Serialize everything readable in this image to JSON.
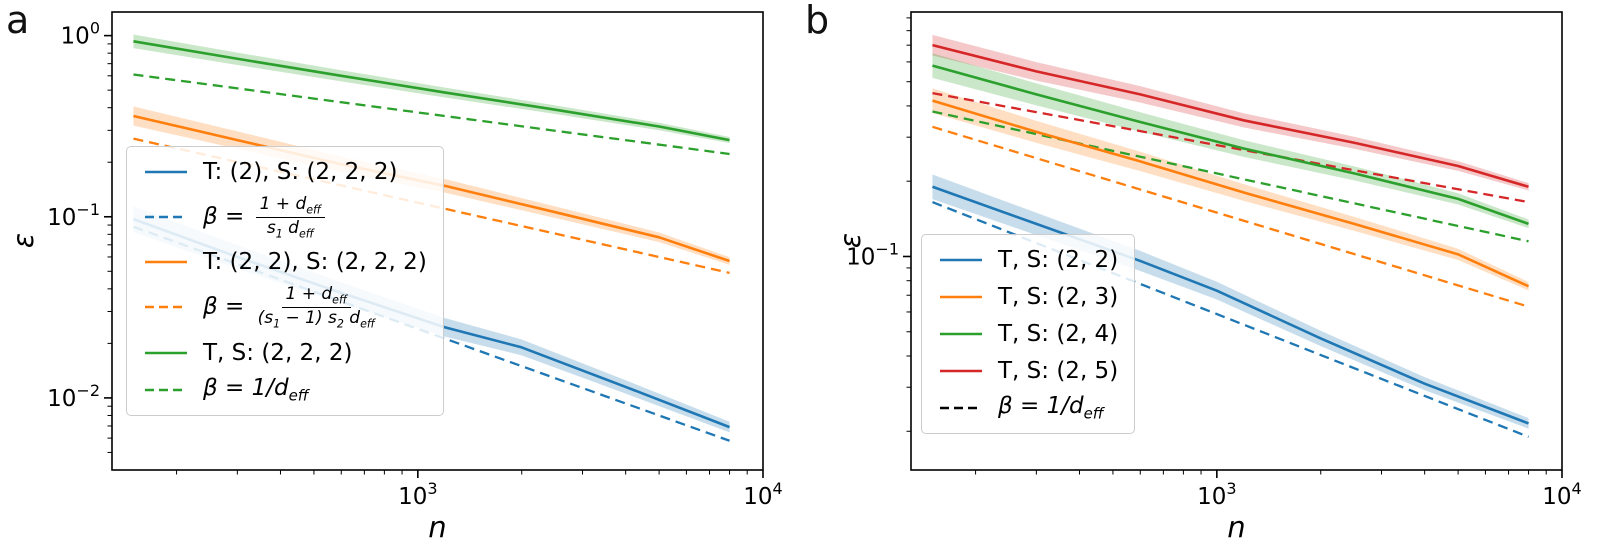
{
  "chart_data": [
    {
      "type": "line",
      "panel_label": "a",
      "xlabel": "n",
      "ylabel": "ε",
      "xscale": "log",
      "yscale": "log",
      "xlim": [
        130,
        10000
      ],
      "ylim": [
        0.004,
        1.35
      ],
      "grid": false,
      "x_ticks": [
        {
          "value": 1000,
          "exp": "3"
        },
        {
          "value": 10000,
          "exp": "4"
        }
      ],
      "y_ticks": [
        {
          "value": 1,
          "exp": "0"
        },
        {
          "value": 0.1,
          "exp": "−1"
        },
        {
          "value": 0.01,
          "exp": "−2"
        }
      ],
      "series": [
        {
          "name": "T, S: (2, 2, 2) band",
          "color": "#2ca02c",
          "style": "band",
          "x": [
            150,
            300,
            600,
            1200,
            2500,
            5000,
            8000
          ],
          "y": [
            0.93,
            0.745,
            0.6,
            0.485,
            0.39,
            0.315,
            0.265
          ],
          "band_factor": [
            1.09,
            1.04
          ]
        },
        {
          "name": "T: (2, 2), S: (2, 2, 2) band",
          "color": "#ff7f0e",
          "style": "band",
          "x": [
            150,
            300,
            600,
            1200,
            2500,
            5000,
            8000
          ],
          "y": [
            0.36,
            0.265,
            0.195,
            0.148,
            0.106,
            0.077,
            0.057
          ],
          "band_factor": [
            1.13,
            1.05
          ]
        },
        {
          "name": "T: (2), S: (2, 2, 2) band",
          "color": "#1f77b4",
          "style": "band",
          "x": [
            150,
            300,
            600,
            1200,
            2000,
            4000,
            8000
          ],
          "y": [
            0.097,
            0.06,
            0.038,
            0.0245,
            0.019,
            0.0115,
            0.0069
          ],
          "band_factor": [
            1.18,
            1.07
          ]
        },
        {
          "name": "β = 1/d_eff (green)",
          "color": "#2ca02c",
          "style": "dashed",
          "x": [
            150,
            8000
          ],
          "y": [
            0.61,
            0.222
          ]
        },
        {
          "name": "T, S: (2, 2, 2)",
          "color": "#2ca02c",
          "style": "solid",
          "x": [
            150,
            300,
            600,
            1200,
            2500,
            5000,
            8000
          ],
          "y": [
            0.93,
            0.745,
            0.6,
            0.485,
            0.39,
            0.315,
            0.265
          ]
        },
        {
          "name": "β = (1+d_eff)/((s1−1) s2 d_eff)",
          "color": "#ff7f0e",
          "style": "dashed",
          "x": [
            150,
            8000
          ],
          "y": [
            0.27,
            0.049
          ]
        },
        {
          "name": "T: (2, 2), S: (2, 2, 2)",
          "color": "#ff7f0e",
          "style": "solid",
          "x": [
            150,
            300,
            600,
            1200,
            2500,
            5000,
            8000
          ],
          "y": [
            0.36,
            0.265,
            0.195,
            0.148,
            0.106,
            0.077,
            0.057
          ]
        },
        {
          "name": "β = (1+d_eff)/(s1 d_eff)",
          "color": "#1f77b4",
          "style": "dashed",
          "x": [
            150,
            8000
          ],
          "y": [
            0.088,
            0.0058
          ]
        },
        {
          "name": "T: (2), S: (2, 2, 2)",
          "color": "#1f77b4",
          "style": "solid",
          "x": [
            150,
            300,
            600,
            1200,
            2000,
            4000,
            8000
          ],
          "y": [
            0.097,
            0.06,
            0.038,
            0.0245,
            0.019,
            0.0115,
            0.0069
          ]
        }
      ],
      "legend": {
        "position": "center-left",
        "entries": [
          {
            "kind": "text",
            "dash": false,
            "color": "#1f77b4",
            "label": "T: (2), S: (2, 2, 2)"
          },
          {
            "kind": "frac",
            "dash": true,
            "color": "#1f77b4",
            "prefix": "β = ",
            "num": "1 + d_[eff]",
            "den": "s_[1] d_[eff]"
          },
          {
            "kind": "text",
            "dash": false,
            "color": "#ff7f0e",
            "label": "T: (2, 2), S: (2, 2, 2)"
          },
          {
            "kind": "frac",
            "dash": true,
            "color": "#ff7f0e",
            "prefix": "β = ",
            "num": "1 + d_[eff]",
            "den": "(s_[1] − 1) s_[2] d_[eff]"
          },
          {
            "kind": "text",
            "dash": false,
            "color": "#2ca02c",
            "label": "T, S: (2, 2, 2)"
          },
          {
            "kind": "math",
            "dash": true,
            "color": "#2ca02c",
            "label": "β = 1/d_[eff]"
          }
        ]
      }
    },
    {
      "type": "line",
      "panel_label": "b",
      "xlabel": "n",
      "ylabel": "ε",
      "xscale": "log",
      "yscale": "log",
      "xlim": [
        130,
        10000
      ],
      "ylim": [
        0.014,
        0.95
      ],
      "grid": false,
      "x_ticks": [
        {
          "value": 1000,
          "exp": "3"
        },
        {
          "value": 10000,
          "exp": "4"
        }
      ],
      "y_ticks": [
        {
          "value": 0.1,
          "exp": "−1"
        }
      ],
      "series": [
        {
          "name": "T, S: (2, 5) band",
          "color": "#d62728",
          "style": "band",
          "x": [
            150,
            300,
            600,
            1200,
            2500,
            5000,
            8000
          ],
          "y": [
            0.7,
            0.55,
            0.445,
            0.35,
            0.285,
            0.23,
            0.19
          ],
          "band_factor": [
            1.1,
            1.035
          ]
        },
        {
          "name": "T, S: (2, 4) band",
          "color": "#2ca02c",
          "style": "band",
          "x": [
            150,
            300,
            600,
            1200,
            2500,
            5000,
            8000
          ],
          "y": [
            0.58,
            0.445,
            0.345,
            0.27,
            0.215,
            0.17,
            0.135
          ],
          "band_factor": [
            1.12,
            1.04
          ]
        },
        {
          "name": "T, S: (2, 3) band",
          "color": "#ff7f0e",
          "style": "band",
          "x": [
            150,
            300,
            600,
            1200,
            2500,
            5000,
            8000
          ],
          "y": [
            0.42,
            0.315,
            0.24,
            0.18,
            0.135,
            0.102,
            0.076
          ],
          "band_factor": [
            1.12,
            1.04
          ]
        },
        {
          "name": "T, S: (2, 2) band",
          "color": "#1f77b4",
          "style": "band",
          "x": [
            150,
            300,
            600,
            1000,
            2000,
            4000,
            8000
          ],
          "y": [
            0.19,
            0.135,
            0.096,
            0.073,
            0.047,
            0.031,
            0.0215
          ],
          "band_factor": [
            1.12,
            1.05
          ]
        },
        {
          "name": "β = 1/d_eff (red)",
          "color": "#d62728",
          "style": "dashed",
          "x": [
            150,
            8000
          ],
          "y": [
            0.45,
            0.165
          ]
        },
        {
          "name": "β = 1/d_eff (green)",
          "color": "#2ca02c",
          "style": "dashed",
          "x": [
            150,
            8000
          ],
          "y": [
            0.38,
            0.115
          ]
        },
        {
          "name": "β = 1/d_eff (orange)",
          "color": "#ff7f0e",
          "style": "dashed",
          "x": [
            150,
            8000
          ],
          "y": [
            0.33,
            0.063
          ]
        },
        {
          "name": "β = 1/d_eff (blue)",
          "color": "#1f77b4",
          "style": "dashed",
          "x": [
            150,
            8000
          ],
          "y": [
            0.165,
            0.019
          ]
        },
        {
          "name": "T, S: (2, 2)",
          "color": "#1f77b4",
          "style": "solid",
          "x": [
            150,
            300,
            600,
            1000,
            2000,
            4000,
            8000
          ],
          "y": [
            0.19,
            0.135,
            0.096,
            0.073,
            0.047,
            0.031,
            0.0215
          ]
        },
        {
          "name": "T, S: (2, 3)",
          "color": "#ff7f0e",
          "style": "solid",
          "x": [
            150,
            300,
            600,
            1200,
            2500,
            5000,
            8000
          ],
          "y": [
            0.42,
            0.315,
            0.24,
            0.18,
            0.135,
            0.102,
            0.076
          ]
        },
        {
          "name": "T, S: (2, 4)",
          "color": "#2ca02c",
          "style": "solid",
          "x": [
            150,
            300,
            600,
            1200,
            2500,
            5000,
            8000
          ],
          "y": [
            0.58,
            0.445,
            0.345,
            0.27,
            0.215,
            0.17,
            0.135
          ]
        },
        {
          "name": "T, S: (2, 5)",
          "color": "#d62728",
          "style": "solid",
          "x": [
            150,
            300,
            600,
            1200,
            2500,
            5000,
            8000
          ],
          "y": [
            0.7,
            0.55,
            0.445,
            0.35,
            0.285,
            0.23,
            0.19
          ]
        }
      ],
      "legend": {
        "position": "lower-left",
        "entries": [
          {
            "kind": "text",
            "dash": false,
            "color": "#1f77b4",
            "label": "T, S: (2, 2)"
          },
          {
            "kind": "text",
            "dash": false,
            "color": "#ff7f0e",
            "label": "T, S: (2, 3)"
          },
          {
            "kind": "text",
            "dash": false,
            "color": "#2ca02c",
            "label": "T, S: (2, 4)"
          },
          {
            "kind": "text",
            "dash": false,
            "color": "#d62728",
            "label": "T, S: (2, 5)"
          },
          {
            "kind": "math",
            "dash": true,
            "color": "#000000",
            "label": "β = 1/d_[eff]"
          }
        ]
      }
    }
  ],
  "colors": {
    "blue": "#1f77b4",
    "orange": "#ff7f0e",
    "green": "#2ca02c",
    "red": "#d62728",
    "axis": "#000000",
    "legend_border": "#cccccc"
  }
}
